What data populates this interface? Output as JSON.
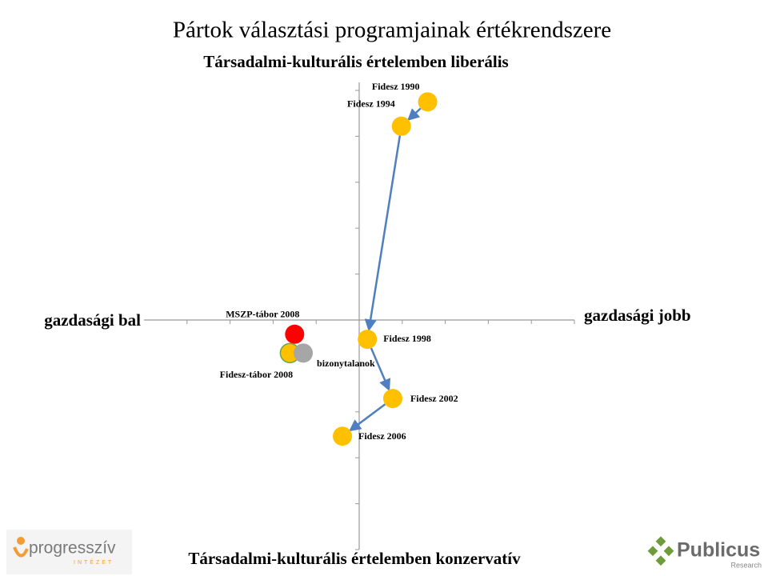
{
  "chart_data": {
    "type": "scatter",
    "title": "Pártok választási programjainak értékrendszere",
    "top_label": "Társadalmi-kulturális értelemben liberális",
    "bottom_label": "Társadalmi-kulturális értelemben konzervatív",
    "left_label": "gazdasági bal",
    "right_label": "gazdasági jobb",
    "xlim": [
      -5,
      5
    ],
    "ylim": [
      -5,
      5
    ],
    "xticks": [
      -4,
      -3,
      -2,
      -1,
      0,
      1,
      2,
      3,
      4,
      5
    ],
    "yticks": [
      -5,
      -4,
      -3,
      -2,
      -1,
      0,
      1,
      2,
      3,
      4,
      5
    ],
    "series": [
      {
        "labels": [
          "Fidesz 1990",
          "Fidesz 1994",
          "Fidesz 1998",
          "Fidesz 2002",
          "Fidesz 2006"
        ],
        "x": [
          1.59,
          0.98,
          0.19,
          0.78,
          -0.39
        ],
        "y": [
          4.75,
          4.22,
          -0.42,
          -1.71,
          -2.53
        ],
        "color": "#ffc000",
        "connected": true
      },
      {
        "labels": [
          "MSZP-tábor 2008"
        ],
        "x": [
          -1.5
        ],
        "y": [
          -0.31
        ],
        "color": "#ff0000"
      },
      {
        "labels": [
          "Fidesz-tábor 2008"
        ],
        "x": [
          -1.61
        ],
        "y": [
          -0.72
        ],
        "color": "#ffc000",
        "outline": "#6aa84f"
      },
      {
        "labels": [
          "bizonytalanok"
        ],
        "x": [
          -1.3
        ],
        "y": [
          -0.72
        ],
        "color": "#a6a6a6"
      }
    ]
  },
  "logos": {
    "left": "progresszív",
    "left_sub": "INTÉZET",
    "right": "Publicus",
    "right_sub": "Research"
  }
}
